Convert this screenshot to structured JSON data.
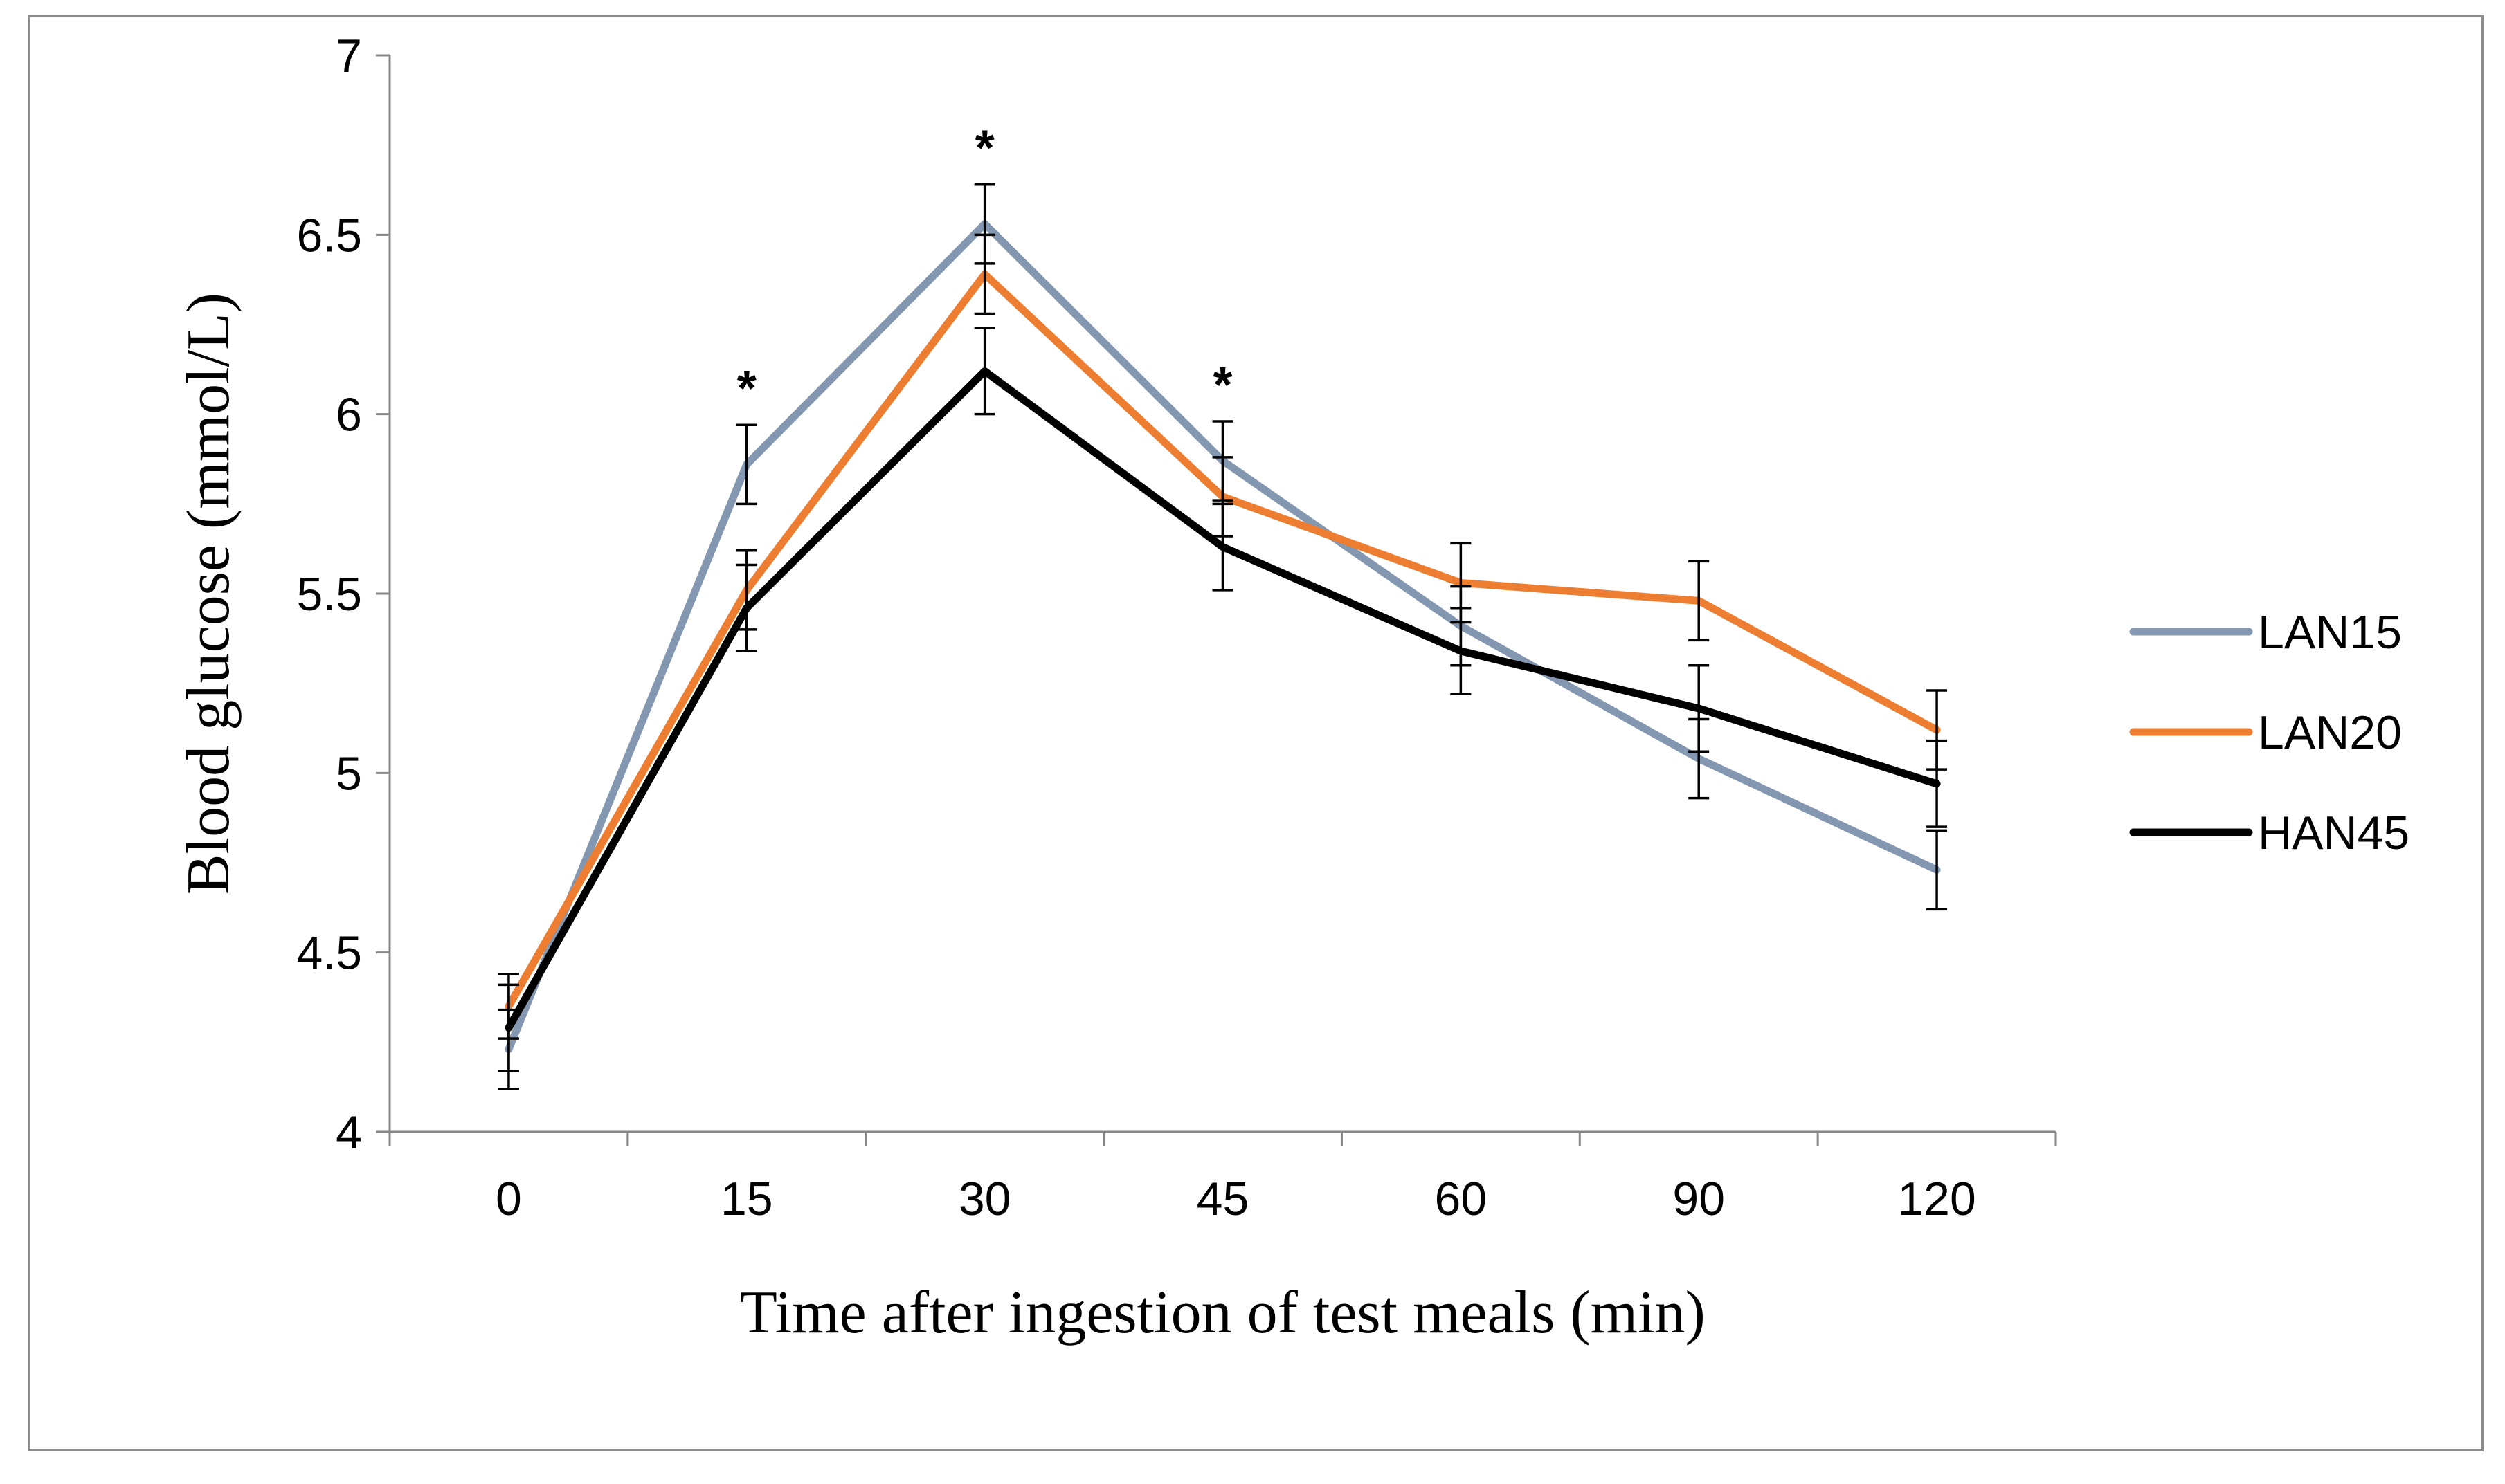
{
  "chart_data": {
    "type": "line",
    "xlabel": "Time after ingestion of test meals (min)",
    "ylabel": "Blood glucose (mmol/L)",
    "ylim": [
      4,
      7
    ],
    "ytick_step": 0.5,
    "categories": [
      "0",
      "15",
      "30",
      "45",
      "60",
      "90",
      "120"
    ],
    "series": [
      {
        "name": "LAN15",
        "color": "#8497b0",
        "values": [
          4.23,
          5.86,
          6.53,
          5.87,
          5.41,
          5.04,
          4.73
        ],
        "errors": [
          0.11,
          0.11,
          0.11,
          0.11,
          0.11,
          0.11,
          0.11
        ]
      },
      {
        "name": "LAN20",
        "color": "#ed7d31",
        "values": [
          4.35,
          5.51,
          6.39,
          5.77,
          5.53,
          5.48,
          5.12
        ],
        "errors": [
          0.09,
          0.11,
          0.11,
          0.11,
          0.11,
          0.11,
          0.11
        ]
      },
      {
        "name": "HAN45",
        "color": "#000000",
        "values": [
          4.29,
          5.46,
          6.12,
          5.63,
          5.34,
          5.18,
          4.97
        ],
        "errors": [
          0.12,
          0.12,
          0.12,
          0.12,
          0.12,
          0.12,
          0.12
        ]
      }
    ],
    "annotations": [
      {
        "category": "15",
        "text": "*"
      },
      {
        "category": "30",
        "text": "*"
      },
      {
        "category": "45",
        "text": "*"
      }
    ],
    "legend_position": "right"
  }
}
